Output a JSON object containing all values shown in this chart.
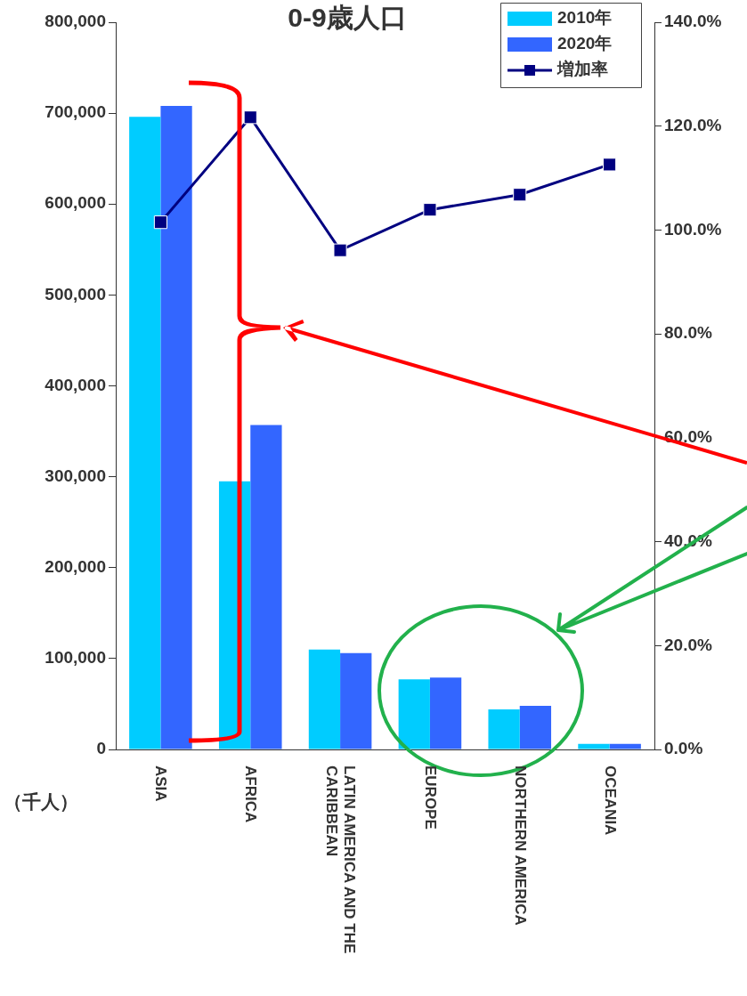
{
  "chart_data": {
    "type": "bar",
    "title": "0-9歳人口",
    "ylabel": "（千人）",
    "categories": [
      "ASIA",
      "AFRICA",
      "LATIN AMERICA AND THE CARIBBEAN",
      "EUROPE",
      "NORTHERN AMERICA",
      "OCEANIA"
    ],
    "series": [
      {
        "name": "2010年",
        "color": "#00ccff",
        "values": [
          696000,
          295000,
          110000,
          77000,
          44000,
          6000
        ]
      },
      {
        "name": "2020年",
        "color": "#3366ff",
        "values": [
          708000,
          357000,
          106000,
          79000,
          48000,
          6000
        ]
      },
      {
        "name": "増加率",
        "type": "line",
        "axis": "y2",
        "color": "#000080",
        "marker": "square",
        "values": [
          101.5,
          121.7,
          96.1,
          103.9,
          106.8,
          112.6
        ]
      }
    ],
    "ylim": [
      0,
      800000
    ],
    "yticks": [
      {
        "value": 0,
        "label": "0"
      },
      {
        "value": 100000,
        "label": "100,000"
      },
      {
        "value": 200000,
        "label": "200,000"
      },
      {
        "value": 300000,
        "label": "300,000"
      },
      {
        "value": 400000,
        "label": "400,000"
      },
      {
        "value": 500000,
        "label": "500,000"
      },
      {
        "value": 600000,
        "label": "600,000"
      },
      {
        "value": 700000,
        "label": "700,000"
      },
      {
        "value": 800000,
        "label": "800,000"
      }
    ],
    "y2lim": [
      0,
      140
    ],
    "y2ticks": [
      {
        "value": 0,
        "label": "0.0%"
      },
      {
        "value": 20,
        "label": "20.0%"
      },
      {
        "value": 40,
        "label": "40.0%"
      },
      {
        "value": 60,
        "label": "60.0%"
      },
      {
        "value": 80,
        "label": "80.0%"
      },
      {
        "value": 100,
        "label": "100.0%"
      },
      {
        "value": 120,
        "label": "120.0%"
      },
      {
        "value": 140,
        "label": "140.0%"
      }
    ],
    "grid": false,
    "legend": "top right"
  }
}
